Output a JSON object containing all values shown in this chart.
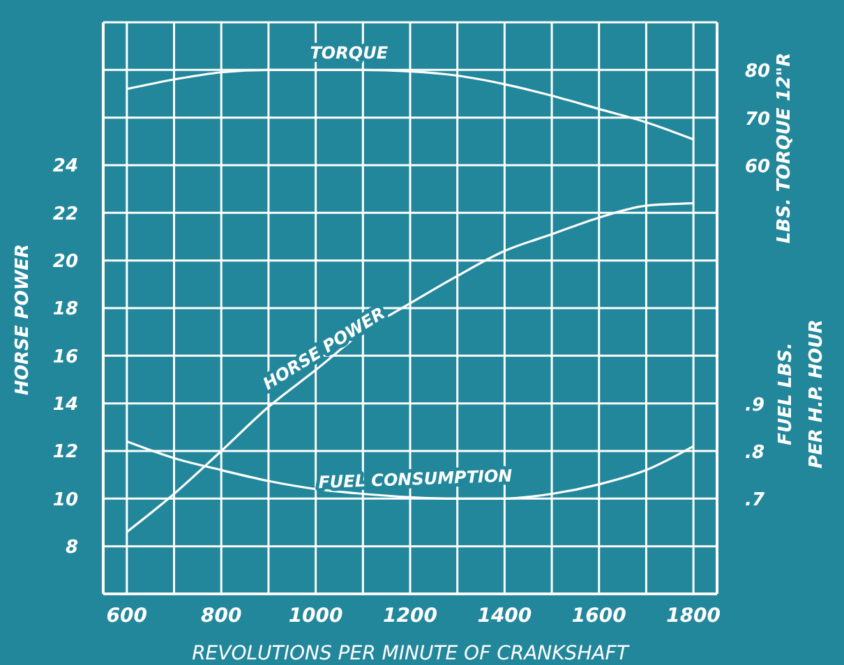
{
  "chart_data": {
    "type": "line",
    "xlabel": "REVOLUTIONS PER MINUTE OF CRANKSHAFT",
    "ylabel": "HORSE POWER",
    "y2label": "LBS. TORQUE 12\"R",
    "y3label": "FUEL LBS.\nPER H.P. HOUR",
    "x": [
      600,
      700,
      800,
      900,
      1000,
      1100,
      1200,
      1300,
      1400,
      1500,
      1600,
      1700,
      1800
    ],
    "series": [
      {
        "name": "TORQUE",
        "color": "#ffffff",
        "axis": "y2",
        "values": [
          76,
          78,
          79.5,
          80,
          80,
          80,
          79.7,
          78.8,
          77,
          74.6,
          71.8,
          69,
          65.4
        ]
      },
      {
        "name": "HORSE POWER",
        "color": "#ffffff",
        "values": [
          8.6,
          10.2,
          12,
          13.85,
          15.4,
          17,
          18.2,
          19.35,
          20.4,
          21.1,
          21.8,
          22.3,
          22.4
        ]
      },
      {
        "name": "FUEL CONSUMPTION",
        "color": "#ffffff",
        "axis": "y3",
        "values": [
          0.82,
          0.785,
          0.76,
          0.737,
          0.72,
          0.71,
          0.703,
          0.7,
          0.7,
          0.71,
          0.73,
          0.76,
          0.81
        ]
      }
    ],
    "xlim": [
      550,
      1850
    ],
    "xticks": [
      600,
      {
        "value": 700,
        "label": null
      },
      800,
      {
        "value": 900,
        "label": null
      },
      1000,
      {
        "value": 1100,
        "label": null
      },
      1200,
      {
        "value": 1300,
        "label": null
      },
      1400,
      {
        "value": 1500,
        "label": null
      },
      1600,
      {
        "value": 1700,
        "label": null
      },
      1800
    ],
    "ylim": [
      6,
      30
    ],
    "yticks": [
      8,
      10,
      12,
      14,
      16,
      18,
      20,
      22,
      24,
      {
        "value": 26,
        "label": null
      },
      {
        "value": 28,
        "label": null
      }
    ],
    "y2lim": [
      -30,
      90
    ],
    "y2ticks": [
      60,
      70,
      80
    ],
    "y3lim": [
      0.5,
      1.7
    ],
    "y3ticks": [
      {
        "value": 0.7,
        "label": ".7"
      },
      {
        "value": 0.8,
        "label": ".8"
      },
      {
        "value": 0.9,
        "label": ".9"
      }
    ],
    "grid": true,
    "marker": "none",
    "line_style": "solid"
  }
}
